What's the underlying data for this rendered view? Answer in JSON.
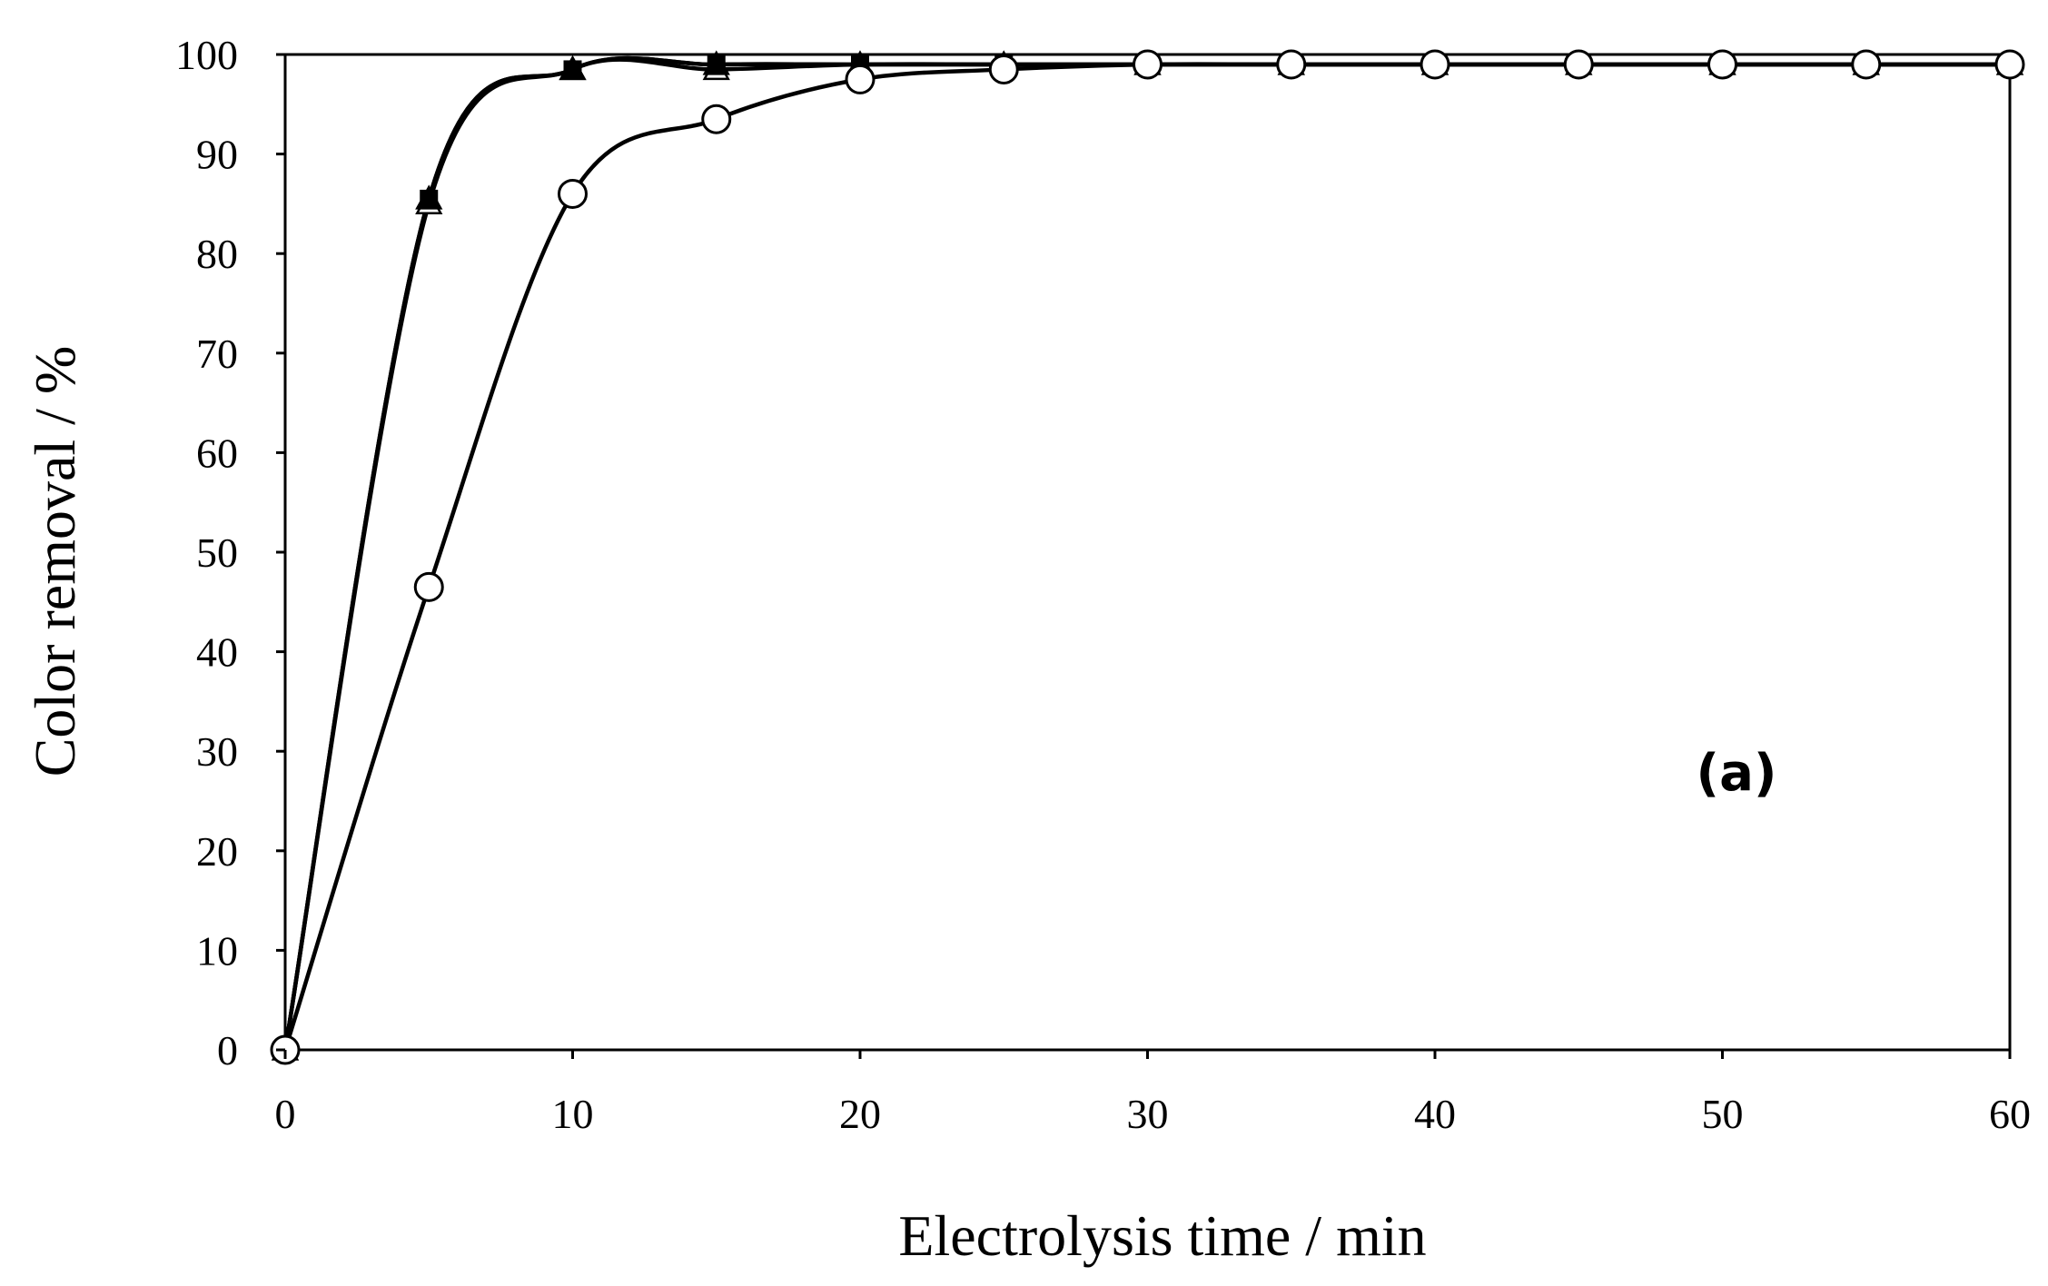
{
  "chart_data": {
    "type": "line",
    "title": "",
    "xlabel": "Electrolysis time / min",
    "ylabel": "Color removal / %",
    "xlim": [
      0,
      60
    ],
    "ylim": [
      0,
      100
    ],
    "x_ticks": [
      "0",
      "10",
      "20",
      "30",
      "40",
      "50",
      "60"
    ],
    "y_ticks": [
      "0",
      "10",
      "20",
      "30",
      "40",
      "50",
      "60",
      "70",
      "80",
      "90",
      "100"
    ],
    "grid": false,
    "legend": "none",
    "annotation": "(a)",
    "smooth_lines": true,
    "line_color": "#000000",
    "series": [
      {
        "marker": "filled-square",
        "x": [
          0,
          5,
          10,
          15,
          20,
          25,
          30,
          35,
          40,
          45,
          50,
          55,
          60
        ],
        "y": [
          0,
          85.5,
          98.5,
          99,
          99,
          99,
          99,
          99,
          99,
          99,
          99,
          99,
          99
        ]
      },
      {
        "marker": "open-triangle",
        "x": [
          0,
          5,
          10,
          15,
          20,
          25,
          30,
          35,
          40,
          45,
          50,
          55,
          60
        ],
        "y": [
          0,
          85,
          98.5,
          98.5,
          99,
          99,
          99,
          99,
          99,
          99,
          99,
          99,
          99
        ]
      },
      {
        "marker": "filled-triangle",
        "x": [
          0,
          5,
          10,
          15,
          20,
          25,
          30,
          35,
          40,
          45,
          50,
          55,
          60
        ],
        "y": [
          0,
          85.5,
          98.5,
          99,
          99,
          99,
          99,
          99,
          99,
          99,
          99,
          99,
          99
        ]
      },
      {
        "marker": "open-circle",
        "x": [
          0,
          5,
          10,
          15,
          20,
          25,
          30,
          35,
          40,
          45,
          50,
          55,
          60
        ],
        "y": [
          0,
          46.5,
          86,
          93.5,
          97.5,
          98.5,
          99,
          99,
          99,
          99,
          99,
          99,
          99
        ]
      }
    ]
  }
}
